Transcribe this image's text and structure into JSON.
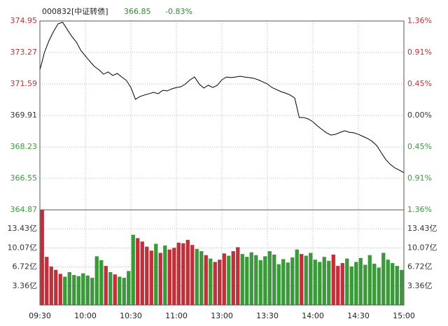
{
  "chart_data": {
    "type": "intraday",
    "code": "000832[中证转债]",
    "last_price": "366.85",
    "change_pct": "-0.83%",
    "time_labels": [
      "09:30",
      "10:00",
      "10:30",
      "11:00",
      "13:00",
      "13:30",
      "14:00",
      "14:30",
      "15:00"
    ],
    "price": {
      "color": "#000000",
      "values": [
        372.34,
        373.27,
        373.9,
        374.39,
        374.8,
        374.88,
        374.5,
        374.13,
        373.83,
        373.38,
        373.08,
        372.79,
        372.52,
        372.34,
        372.11,
        372.23,
        372.04,
        372.15,
        371.96,
        371.78,
        371.4,
        370.77,
        370.92,
        371.0,
        371.07,
        371.14,
        371.07,
        371.25,
        371.22,
        371.33,
        371.4,
        371.44,
        371.59,
        371.81,
        371.96,
        371.59,
        371.37,
        371.52,
        371.4,
        371.52,
        371.81,
        371.96,
        371.93,
        371.96,
        372.0,
        371.96,
        371.93,
        371.89,
        371.81,
        371.7,
        371.59,
        371.4,
        371.29,
        371.18,
        371.1,
        371.0,
        370.84,
        369.8,
        369.8,
        369.72,
        369.57,
        369.35,
        369.16,
        368.98,
        368.86,
        368.9,
        369.01,
        369.09,
        369.01,
        368.98,
        368.9,
        368.79,
        368.68,
        368.53,
        368.31,
        367.93,
        367.56,
        367.3,
        367.11,
        366.99,
        366.85
      ],
      "ylim": [
        364.87,
        374.95
      ],
      "yticks": [
        374.95,
        373.27,
        371.59,
        369.91,
        368.23,
        366.55,
        364.87
      ],
      "y2lim": [
        -1.36,
        1.36
      ],
      "y2ticks": [
        {
          "value": 1.36,
          "label": "1.36%"
        },
        {
          "value": 0.91,
          "label": "0.91%"
        },
        {
          "value": 0.45,
          "label": "0.45%"
        },
        {
          "value": 0.0,
          "label": "0.00%"
        },
        {
          "value": -0.45,
          "label": "0.45%"
        },
        {
          "value": -0.91,
          "label": "0.91%"
        },
        {
          "value": -1.36,
          "label": "1.36%"
        }
      ]
    },
    "volume": {
      "values": [
        16.79,
        8.5,
        6.8,
        6.2,
        5.5,
        5.0,
        5.8,
        5.3,
        5.1,
        5.6,
        5.2,
        4.8,
        8.6,
        7.9,
        6.9,
        5.8,
        5.4,
        5.0,
        4.8,
        6.0,
        12.4,
        11.8,
        11.2,
        10.3,
        9.6,
        10.8,
        9.2,
        10.5,
        9.8,
        10.1,
        11.0,
        10.9,
        11.5,
        10.6,
        9.9,
        9.5,
        8.8,
        8.2,
        7.6,
        8.0,
        9.1,
        8.7,
        9.5,
        10.2,
        9.0,
        8.5,
        9.3,
        8.8,
        7.9,
        8.6,
        9.5,
        8.9,
        7.2,
        8.1,
        7.5,
        8.4,
        9.8,
        9.0,
        8.7,
        9.2,
        8.0,
        7.6,
        8.5,
        7.8,
        8.9,
        6.9,
        7.4,
        8.2,
        6.8,
        7.6,
        8.3,
        7.1,
        8.8,
        7.3,
        6.6,
        9.2,
        8.0,
        7.4,
        6.9,
        6.2
      ],
      "ylim": [
        0,
        16.79
      ],
      "yticks": [
        {
          "value": 13.43,
          "label": "13.43亿"
        },
        {
          "value": 10.07,
          "label": "10.07亿"
        },
        {
          "value": 6.72,
          "label": "6.72亿"
        },
        {
          "value": 3.36,
          "label": "3.36亿"
        }
      ]
    },
    "up_color": "#c0303a",
    "down_color": "#3a9a3a",
    "flat_color": "#333333",
    "grid": true
  }
}
